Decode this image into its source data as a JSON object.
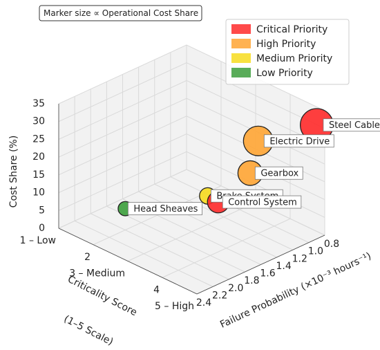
{
  "chart_data": {
    "type": "scatter3d",
    "annotation": "Marker size ∝ Operational Cost Share",
    "xlabel": "Failure Probability (×10⁻³ hours⁻¹)",
    "ylabel": "Criticality Score",
    "ylabel_note": "(1–5 Scale)",
    "zlabel": "Cost Share (%)",
    "xlim": [
      0.8,
      2.4
    ],
    "xticks": [
      0.8,
      {
        "value": 1,
        "label": "1.0"
      },
      1.2,
      1.4,
      1.6,
      1.8,
      {
        "value": 2,
        "label": "2.0"
      },
      2.2,
      2.4
    ],
    "ylim": [
      1,
      5
    ],
    "yticks": [
      {
        "value": 1,
        "label": "1 – Low"
      },
      2,
      {
        "value": 3,
        "label": "3 – Medium"
      },
      4,
      {
        "value": 5,
        "label": "5 – High"
      }
    ],
    "zlim": [
      0,
      35
    ],
    "zticks": [
      0,
      5,
      10,
      15,
      20,
      25,
      30,
      35
    ],
    "grid": true,
    "legend": "upper right",
    "series": [
      {
        "name": "Critical Priority",
        "color": "#ff2a2a",
        "labels": [
          "Steel Cables",
          "Control System"
        ],
        "x": [
          0.9,
          1.7
        ],
        "y": [
          5,
          4
        ],
        "z": [
          32,
          14
        ]
      },
      {
        "name": "High Priority",
        "color": "#ffa534",
        "labels": [
          "Electric Drive",
          "Gearbox"
        ],
        "x": [
          1.2,
          1.3
        ],
        "y": [
          4,
          4
        ],
        "z": [
          26,
          18
        ]
      },
      {
        "name": "Medium Priority",
        "color": "#f7dc1e",
        "labels": [
          "Brake System"
        ],
        "x": [
          1.4
        ],
        "y": [
          3
        ],
        "z": [
          8
        ]
      },
      {
        "name": "Low Priority",
        "color": "#3c9e3c",
        "labels": [
          "Head Sheaves"
        ],
        "x": [
          2.0
        ],
        "y": [
          2
        ],
        "z": [
          6
        ]
      }
    ]
  }
}
